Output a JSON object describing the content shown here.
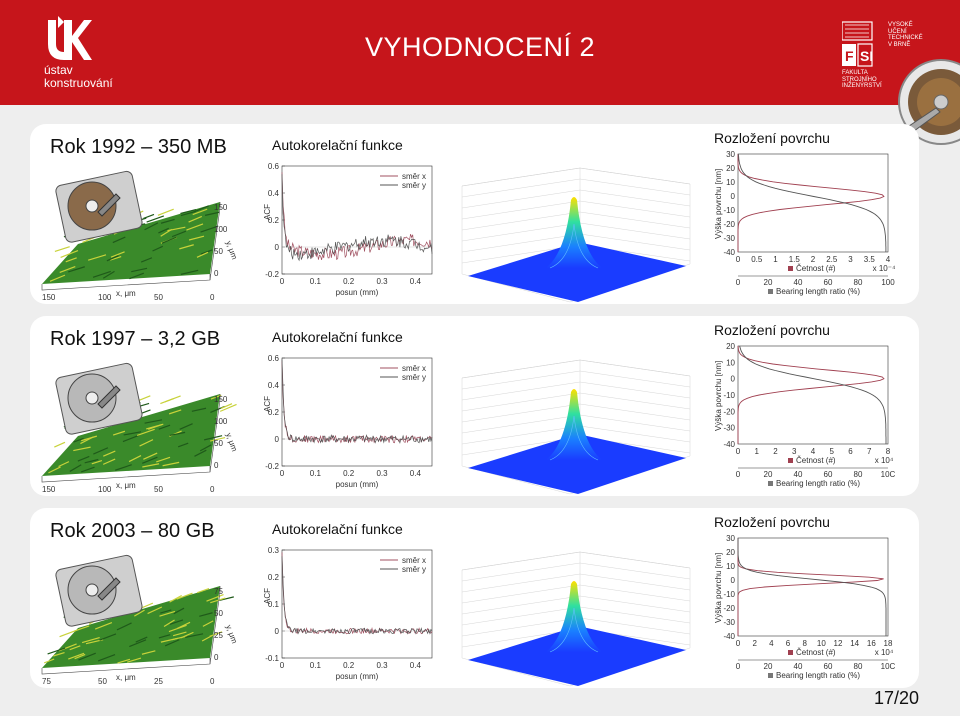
{
  "header": {
    "logo_text_1": "ústav",
    "logo_text_2": "konstruování",
    "title": "VYHODNOCENÍ 2",
    "fsi_lines": [
      "VYSOKÉ",
      "UČENÍ",
      "TECHNICKÉ",
      "V BRNĚ"
    ],
    "fsi_faculty": [
      "FAKULTA",
      "STROJNÍHO",
      "INŽENÝRSTVÍ"
    ]
  },
  "rows": [
    {
      "label": "Rok 1992 – 350 MB",
      "acf_title": "Autokorelační funkce",
      "dist_title": "Rozložení povrchu",
      "surface_axes": {
        "x": "x, μm",
        "y": "y, μm",
        "ticks_x": [
          "150",
          "100",
          "50",
          "0"
        ],
        "ticks_y": [
          "150",
          "100",
          "50",
          "0"
        ]
      },
      "acf": {
        "ylabel": "ACF",
        "xlabel": "posun (mm)",
        "yticks": [
          "0.6",
          "0.4",
          "0.2",
          "0",
          "-0.2"
        ],
        "ytick_values": [
          0.6,
          0.4,
          0.2,
          0,
          -0.2
        ],
        "xticks": [
          "0",
          "0.1",
          "0.2",
          "0.3",
          "0.4"
        ],
        "ylim": [
          -0.2,
          0.6
        ],
        "xlim": [
          0,
          0.45
        ],
        "legend": [
          "směr x",
          "směr y"
        ]
      },
      "dist": {
        "ylabel": "Výška povrchu [nm]",
        "yticks": [
          "30",
          "20",
          "10",
          "0",
          "-10",
          "-20",
          "-30",
          "-40"
        ],
        "xticks_top": [
          "0",
          "0.5",
          "1",
          "1.5",
          "2",
          "2.5",
          "3",
          "3.5",
          "4"
        ],
        "xticks_bottom": [
          "0",
          "20",
          "40",
          "60",
          "80",
          "100"
        ],
        "xlabel_top": "Četnost (#)",
        "xlabel_bottom": "Bearing length ratio (%)",
        "exponent": "x 10⁻⁴"
      }
    },
    {
      "label": "Rok 1997 – 3,2 GB",
      "acf_title": "Autokorelační funkce",
      "dist_title": "Rozložení povrchu",
      "surface_axes": {
        "x": "x, μm",
        "y": "y, μm",
        "ticks_x": [
          "150",
          "100",
          "50",
          "0"
        ],
        "ticks_y": [
          "150",
          "100",
          "50",
          "0"
        ]
      },
      "acf": {
        "ylabel": "ACF",
        "xlabel": "posun (mm)",
        "yticks": [
          "0.6",
          "0.4",
          "0.2",
          "0",
          "-0.2"
        ],
        "ytick_values": [
          0.6,
          0.4,
          0.2,
          0,
          -0.2
        ],
        "xticks": [
          "0",
          "0.1",
          "0.2",
          "0.3",
          "0.4"
        ],
        "ylim": [
          -0.2,
          0.6
        ],
        "xlim": [
          0,
          0.45
        ],
        "legend": [
          "směr x",
          "směr y"
        ]
      },
      "dist": {
        "ylabel": "Výška povrchu [nm]",
        "yticks": [
          "20",
          "10",
          "0",
          "-10",
          "-20",
          "-30",
          "-40"
        ],
        "xticks_top": [
          "0",
          "1",
          "2",
          "3",
          "4",
          "5",
          "6",
          "7",
          "8"
        ],
        "xticks_bottom": [
          "0",
          "20",
          "40",
          "60",
          "80",
          "10C"
        ],
        "xlabel_top": "Četnost (#)",
        "xlabel_bottom": "Bearing length ratio (%)",
        "exponent": "x 10⁴"
      }
    },
    {
      "label": "Rok 2003 – 80 GB",
      "acf_title": "Autokorelační funkce",
      "dist_title": "Rozložení povrchu",
      "surface_axes": {
        "x": "x, μm",
        "y": "y, μm",
        "ticks_x": [
          "75",
          "50",
          "25",
          "0"
        ],
        "ticks_y": [
          "75",
          "50",
          "25",
          "0"
        ]
      },
      "acf": {
        "ylabel": "ACF",
        "xlabel": "posun (mm)",
        "yticks": [
          "0.3",
          "0.2",
          "0.1",
          "0",
          "-0.1"
        ],
        "ytick_values": [
          0.3,
          0.2,
          0.1,
          0,
          -0.1
        ],
        "xticks": [
          "0",
          "0.1",
          "0.2",
          "0.3",
          "0.4"
        ],
        "ylim": [
          -0.1,
          0.3
        ],
        "xlim": [
          0,
          0.45
        ],
        "legend": [
          "směr x",
          "směr y"
        ]
      },
      "dist": {
        "ylabel": "Výška povrchu [nm]",
        "yticks": [
          "30",
          "20",
          "10",
          "0",
          "-10",
          "-20",
          "-30",
          "-40"
        ],
        "xticks_top": [
          "0",
          "2",
          "4",
          "6",
          "8",
          "10",
          "12",
          "14",
          "16",
          "18"
        ],
        "xticks_bottom": [
          "0",
          "20",
          "40",
          "60",
          "80",
          "10C"
        ],
        "xlabel_top": "Četnost (#)",
        "xlabel_bottom": "Bearing length ratio (%)",
        "exponent": "x 10⁴"
      }
    }
  ],
  "footer": {
    "page": "17/20"
  },
  "colors": {
    "header_red": "#c6151b",
    "series_x": "#a05060",
    "series_y": "#555555",
    "surface_blue": "#1a3cff"
  }
}
